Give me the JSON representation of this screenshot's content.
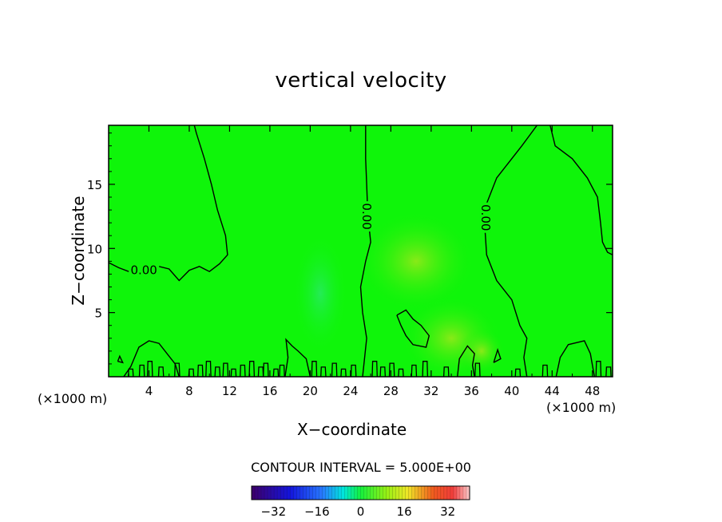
{
  "chart_data": {
    "type": "heatmap",
    "title": "vertical velocity",
    "xlabel": "X−coordinate",
    "ylabel": "Z−coordinate",
    "x_unit_label": "(×1000 m)",
    "xlim": [
      0,
      50
    ],
    "ylim": [
      0,
      19.6
    ],
    "x_ticks": [
      4,
      8,
      12,
      16,
      20,
      24,
      28,
      32,
      36,
      40,
      44,
      48
    ],
    "y_ticks": [
      5,
      10,
      15
    ],
    "x_tick_labels": [
      "4",
      "8",
      "12",
      "16",
      "20",
      "24",
      "28",
      "32",
      "36",
      "40",
      "44",
      "48"
    ],
    "y_tick_labels": [
      "5",
      "10",
      "15"
    ],
    "contour_interval_text": "CONTOUR INTERVAL = 5.000E+00",
    "contour_label": "0.00",
    "colorbar": {
      "range": [
        -40,
        40
      ],
      "ticks": [
        -32,
        -16,
        0,
        16,
        32
      ],
      "tick_labels": [
        "−32",
        "−16",
        "0",
        "16",
        "32"
      ]
    },
    "zero_contours": [
      [
        [
          0,
          8.9
        ],
        [
          1,
          8.5
        ],
        [
          2,
          8.2
        ],
        [
          3,
          8.0
        ],
        [
          4,
          8.3
        ],
        [
          5,
          8.6
        ],
        [
          6,
          8.4
        ],
        [
          7,
          7.5
        ],
        [
          8,
          8.3
        ],
        [
          9,
          8.6
        ],
        [
          10,
          8.2
        ],
        [
          11,
          8.8
        ],
        [
          11.8,
          9.5
        ],
        [
          11.6,
          11
        ],
        [
          10.8,
          13
        ],
        [
          10.2,
          15
        ],
        [
          9.5,
          17
        ],
        [
          8.7,
          19
        ],
        [
          8.5,
          19.6
        ]
      ],
      [
        [
          25.2,
          0
        ],
        [
          25.6,
          3
        ],
        [
          25.2,
          5
        ],
        [
          25,
          7
        ],
        [
          25.5,
          9
        ],
        [
          26,
          10.5
        ],
        [
          25.8,
          12
        ],
        [
          25.7,
          13
        ],
        [
          25.6,
          15
        ],
        [
          25.5,
          17
        ],
        [
          25.5,
          19.6
        ]
      ],
      [
        [
          42.5,
          19.6
        ],
        [
          41,
          18
        ],
        [
          38.5,
          15.5
        ],
        [
          37.5,
          13.5
        ],
        [
          37.3,
          12
        ],
        [
          37.5,
          9.5
        ],
        [
          38.5,
          7.5
        ],
        [
          40,
          6
        ],
        [
          40.8,
          4
        ],
        [
          41.5,
          3
        ],
        [
          41.2,
          1.5
        ],
        [
          41.5,
          0
        ]
      ],
      [
        [
          43.8,
          19.6
        ],
        [
          44.3,
          18
        ],
        [
          46,
          17
        ],
        [
          47.5,
          15.5
        ],
        [
          48.5,
          14
        ],
        [
          48.8,
          12
        ],
        [
          49,
          10.5
        ],
        [
          49.5,
          9.7
        ],
        [
          50,
          9.5
        ]
      ],
      [
        [
          28.6,
          4.8
        ],
        [
          29.5,
          5.2
        ],
        [
          30.2,
          4.5
        ],
        [
          31,
          4
        ],
        [
          31.8,
          3.2
        ],
        [
          31.5,
          2.3
        ],
        [
          30.2,
          2.5
        ],
        [
          29.5,
          3.2
        ],
        [
          29,
          4
        ],
        [
          28.6,
          4.8
        ]
      ]
    ],
    "zero_contour_label_positions": [
      [
        3.5,
        8.3
      ],
      [
        25.6,
        12.5
      ],
      [
        37.4,
        12.4
      ]
    ],
    "near_surface_contours": [
      [
        [
          1.5,
          0
        ],
        [
          2.2,
          0.8
        ],
        [
          3,
          2.3
        ],
        [
          4,
          2.8
        ],
        [
          5,
          2.6
        ],
        [
          6,
          1.6
        ],
        [
          6.6,
          1.0
        ],
        [
          7,
          0
        ]
      ],
      [
        [
          17.5,
          0
        ],
        [
          17.8,
          1.5
        ],
        [
          17.6,
          2.9
        ],
        [
          18.2,
          2.4
        ],
        [
          18.8,
          2.0
        ],
        [
          19.6,
          1.4
        ],
        [
          20,
          0
        ]
      ],
      [
        [
          34.6,
          0
        ],
        [
          34.8,
          1.4
        ],
        [
          35.6,
          2.4
        ],
        [
          36.3,
          1.8
        ],
        [
          36.1,
          0.9
        ],
        [
          36.3,
          0
        ]
      ],
      [
        [
          44.4,
          0
        ],
        [
          44.8,
          1.5
        ],
        [
          45.6,
          2.5
        ],
        [
          47.2,
          2.8
        ],
        [
          47.8,
          1.8
        ],
        [
          48.2,
          0
        ]
      ],
      [
        [
          38.2,
          1.1
        ],
        [
          38.6,
          2.1
        ],
        [
          38.9,
          1.4
        ],
        [
          38.2,
          1.1
        ]
      ],
      [
        [
          0.9,
          1.2
        ],
        [
          1.1,
          1.6
        ],
        [
          1.4,
          1.1
        ],
        [
          0.9,
          1.2
        ]
      ]
    ]
  }
}
